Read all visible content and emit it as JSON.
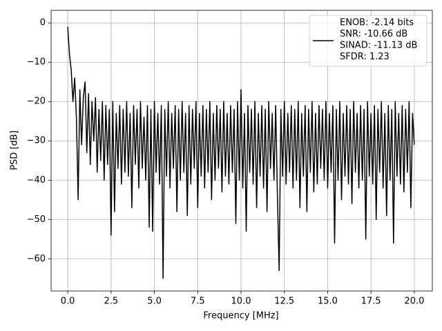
{
  "chart_data": {
    "type": "line",
    "xlabel": "Frequency [MHz]",
    "ylabel": "PSD [dB]",
    "xlim": [
      -0.96,
      21.04
    ],
    "ylim": [
      -68.2,
      3.2
    ],
    "xticks": [
      {
        "value": 0,
        "label": "0.0"
      },
      2.5,
      {
        "value": 5,
        "label": "5.0"
      },
      7.5,
      {
        "value": 10,
        "label": "10.0"
      },
      12.5,
      {
        "value": 15,
        "label": "15.0"
      },
      17.5,
      {
        "value": 20,
        "label": "20.0"
      }
    ],
    "yticks": [
      {
        "value": -60,
        "label": "−60"
      },
      {
        "value": -50,
        "label": "−50"
      },
      {
        "value": -40,
        "label": "−40"
      },
      {
        "value": -30,
        "label": "−30"
      },
      {
        "value": -20,
        "label": "−20"
      },
      {
        "value": -10,
        "label": "−10"
      },
      0
    ],
    "grid": true,
    "legend": "upper right",
    "x": [
      0.0,
      0.1,
      0.2,
      0.3,
      0.4,
      0.5,
      0.6,
      0.7,
      0.8,
      0.9,
      1.0,
      1.1,
      1.2,
      1.3,
      1.4,
      1.5,
      1.6,
      1.7,
      1.8,
      1.9,
      2.0,
      2.1,
      2.2,
      2.3,
      2.4,
      2.5,
      2.6,
      2.7,
      2.8,
      2.9,
      3.0,
      3.1,
      3.2,
      3.3,
      3.4,
      3.5,
      3.6,
      3.7,
      3.8,
      3.9,
      4.0,
      4.1,
      4.2,
      4.3,
      4.4,
      4.5,
      4.6,
      4.7,
      4.8,
      4.9,
      5.0,
      5.1,
      5.2,
      5.3,
      5.4,
      5.5,
      5.6,
      5.7,
      5.8,
      5.9,
      6.0,
      6.1,
      6.2,
      6.3,
      6.4,
      6.5,
      6.6,
      6.7,
      6.8,
      6.9,
      7.0,
      7.1,
      7.2,
      7.3,
      7.4,
      7.5,
      7.6,
      7.7,
      7.8,
      7.9,
      8.0,
      8.1,
      8.2,
      8.3,
      8.4,
      8.5,
      8.6,
      8.7,
      8.8,
      8.9,
      9.0,
      9.1,
      9.2,
      9.3,
      9.4,
      9.5,
      9.6,
      9.7,
      9.8,
      9.9,
      10.0,
      10.1,
      10.2,
      10.3,
      10.4,
      10.5,
      10.6,
      10.7,
      10.8,
      10.9,
      11.0,
      11.1,
      11.2,
      11.3,
      11.4,
      11.5,
      11.6,
      11.7,
      11.8,
      11.9,
      12.0,
      12.1,
      12.2,
      12.3,
      12.4,
      12.5,
      12.6,
      12.7,
      12.8,
      12.9,
      13.0,
      13.1,
      13.2,
      13.3,
      13.4,
      13.5,
      13.6,
      13.7,
      13.8,
      13.9,
      14.0,
      14.1,
      14.2,
      14.3,
      14.4,
      14.5,
      14.6,
      14.7,
      14.8,
      14.9,
      15.0,
      15.1,
      15.2,
      15.3,
      15.4,
      15.5,
      15.6,
      15.7,
      15.8,
      15.9,
      16.0,
      16.1,
      16.2,
      16.3,
      16.4,
      16.5,
      16.6,
      16.7,
      16.8,
      16.9,
      17.0,
      17.1,
      17.2,
      17.3,
      17.4,
      17.5,
      17.6,
      17.7,
      17.8,
      17.9,
      18.0,
      18.1,
      18.2,
      18.3,
      18.4,
      18.5,
      18.6,
      18.7,
      18.8,
      18.9,
      19.0,
      19.1,
      19.2,
      19.3,
      19.4,
      19.5,
      19.6,
      19.7,
      19.8,
      19.9,
      20.0
    ],
    "series": [
      {
        "name": [
          "ENOB: -2.14 bits",
          "SNR: -10.66 dB",
          "SINAD: -11.13 dB",
          "SFDR: 1.23"
        ],
        "color": "#000000",
        "values": [
          -1,
          -8,
          -12,
          -20,
          -14,
          -24,
          -45,
          -17,
          -31,
          -19,
          -15,
          -33,
          -18,
          -36,
          -20,
          -30,
          -19,
          -38,
          -22,
          -35,
          -20,
          -40,
          -21,
          -36,
          -22,
          -54,
          -20,
          -48,
          -23,
          -37,
          -21,
          -41,
          -22,
          -38,
          -20,
          -39,
          -23,
          -47,
          -21,
          -36,
          -22,
          -42,
          -20,
          -37,
          -24,
          -40,
          -21,
          -52,
          -22,
          -53,
          -20,
          -38,
          -23,
          -41,
          -21,
          -65,
          -22,
          -39,
          -20,
          -42,
          -23,
          -37,
          -21,
          -48,
          -22,
          -40,
          -20,
          -38,
          -23,
          -49,
          -21,
          -41,
          -22,
          -37,
          -20,
          -47,
          -23,
          -39,
          -21,
          -42,
          -22,
          -38,
          -20,
          -45,
          -23,
          -40,
          -21,
          -37,
          -22,
          -43,
          -20,
          -39,
          -23,
          -41,
          -21,
          -38,
          -22,
          -51,
          -20,
          -40,
          -17,
          -42,
          -23,
          -53,
          -21,
          -38,
          -22,
          -41,
          -20,
          -47,
          -23,
          -39,
          -21,
          -42,
          -22,
          -48,
          -20,
          -37,
          -23,
          -40,
          -21,
          -44,
          -63,
          -22,
          -39,
          -20,
          -41,
          -23,
          -38,
          -21,
          -42,
          -22,
          -40,
          -20,
          -47,
          -23,
          -39,
          -21,
          -48,
          -22,
          -38,
          -20,
          -43,
          -23,
          -41,
          -21,
          -37,
          -22,
          -40,
          -20,
          -42,
          -23,
          -38,
          -21,
          -56,
          -22,
          -40,
          -20,
          -45,
          -23,
          -39,
          -21,
          -41,
          -22,
          -46,
          -20,
          -38,
          -23,
          -42,
          -21,
          -40,
          -22,
          -55,
          -20,
          -39,
          -23,
          -41,
          -21,
          -50,
          -22,
          -38,
          -20,
          -42,
          -23,
          -49,
          -21,
          -40,
          -22,
          -56,
          -20,
          -39,
          -23,
          -41,
          -21,
          -43,
          -22,
          -38,
          -20,
          -47,
          -23,
          -31
        ]
      }
    ]
  }
}
